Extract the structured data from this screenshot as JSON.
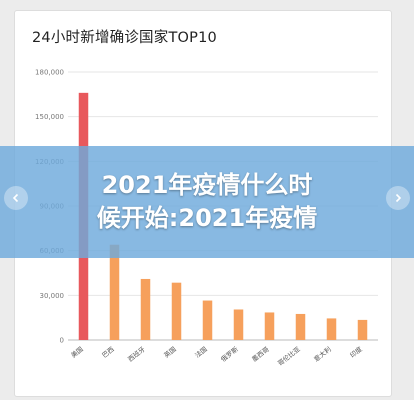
{
  "chart_data": {
    "type": "bar",
    "title": "24小时新增确诊国家TOP10",
    "categories": [
      "美国",
      "巴西",
      "西班牙",
      "英国",
      "法国",
      "俄罗斯",
      "墨西哥",
      "哥伦比亚",
      "意大利",
      "印度"
    ],
    "values": [
      166000,
      64000,
      41000,
      38500,
      26500,
      20500,
      18500,
      17500,
      14500,
      13500
    ],
    "yticks": [
      "0",
      "30,000",
      "60,000",
      "90,000",
      "120,000",
      "150,000",
      "180,000"
    ],
    "ylim": [
      0,
      180000
    ],
    "grid": true,
    "colors": {
      "highlight": "#e8585c",
      "bar": "#f6a05c"
    }
  },
  "overlay": {
    "line1": "2021年疫情什么时",
    "line2": "候开始:2021年疫情"
  }
}
